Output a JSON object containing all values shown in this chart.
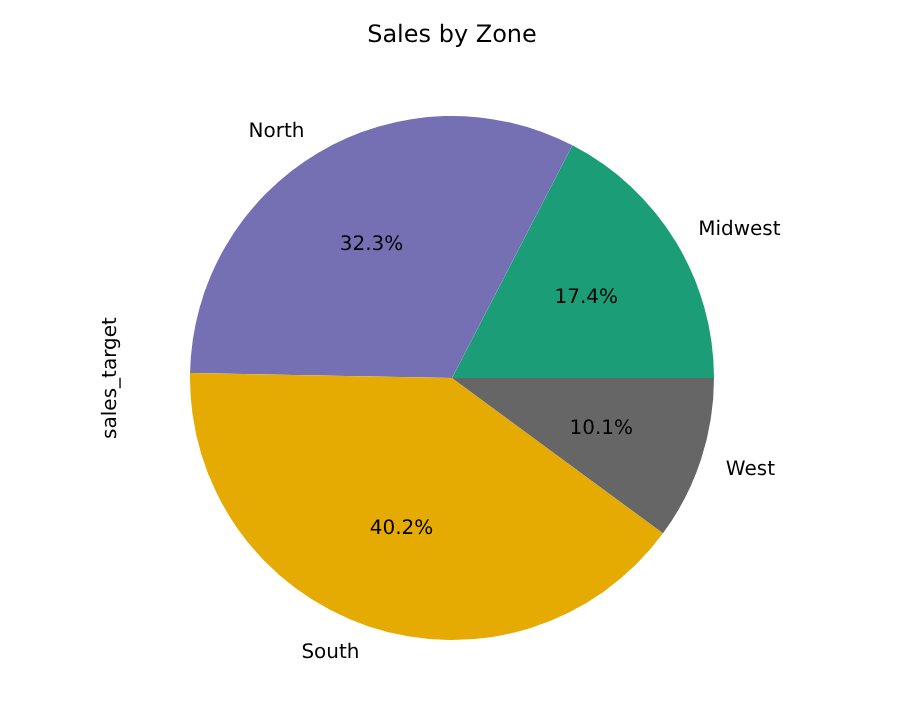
{
  "chart_data": {
    "type": "pie",
    "title": "Sales by Zone",
    "ylabel": "sales_target",
    "categories": [
      "Midwest",
      "North",
      "South",
      "West"
    ],
    "values": [
      17.4,
      32.3,
      40.2,
      10.1
    ],
    "colors": [
      "#1b9e77",
      "#7570b3",
      "#e6ab02",
      "#666666"
    ],
    "value_labels": [
      "17.4%",
      "32.3%",
      "40.2%",
      "10.1%"
    ]
  }
}
